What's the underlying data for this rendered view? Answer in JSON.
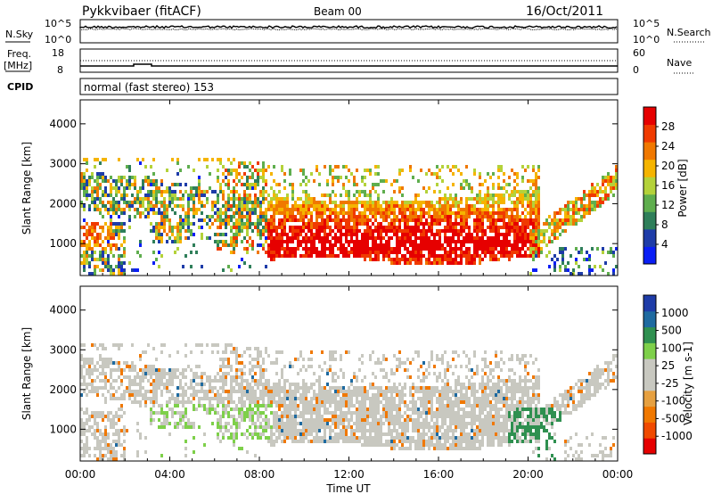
{
  "header": {
    "station": "Pykkvibaer (fitACF)",
    "beam": "Beam 00",
    "date": "16/Oct/2011"
  },
  "strips": {
    "nsky_label": "N.Sky",
    "nsky_ticks": [
      "10^5",
      "10^0"
    ],
    "nsearch_label": "N.Search",
    "nsearch_ticks": [
      "10^5",
      "10^0"
    ],
    "freq_label": "Freq.",
    "freq_unit": "[MHz]",
    "freq_ticks": [
      "18",
      "8"
    ],
    "nave_label": "Nave",
    "nave_ticks": [
      "60",
      "0"
    ],
    "cpid_label": "CPID",
    "cpid_text": "normal (fast stereo) 153"
  },
  "colors": {
    "power": [
      "#0a1ef5",
      "#1e3ca8",
      "#2f7f5a",
      "#5fae4e",
      "#b4d23a",
      "#f5b400",
      "#f07800",
      "#f03a00",
      "#e60000"
    ],
    "velocity": [
      "#e60000",
      "#f04a00",
      "#f07800",
      "#e6a040",
      "#c8c8c0",
      "#c8c8c0",
      "#7ed04a",
      "#2f9050",
      "#1e6aa0",
      "#1e3ca8"
    ]
  },
  "chart_data": [
    {
      "type": "heatmap",
      "name": "power",
      "ylabel": "Slant Range [km]",
      "yticks": [
        "1000",
        "2000",
        "3000",
        "4000"
      ],
      "ylim": [
        200,
        4600
      ],
      "colorbar_label": "Power [dB]",
      "colorbar_ticks": [
        "4",
        "8",
        "12",
        "16",
        "20",
        "24",
        "28"
      ],
      "colorbar_range": [
        0,
        30
      ]
    },
    {
      "type": "heatmap",
      "name": "velocity",
      "ylabel": "Slant Range [km]",
      "yticks": [
        "1000",
        "2000",
        "3000",
        "4000"
      ],
      "ylim": [
        200,
        4600
      ],
      "colorbar_label": "Velocity [m s-1]",
      "colorbar_ticks": [
        "-1000",
        "-500",
        "-100",
        "-25",
        "25",
        "100",
        "500",
        "1000"
      ]
    }
  ],
  "xaxis": {
    "label": "Time UT",
    "ticks": [
      "00:00",
      "04:00",
      "08:00",
      "12:00",
      "16:00",
      "20:00",
      "00:00"
    ],
    "range_hours": [
      0,
      24
    ]
  }
}
